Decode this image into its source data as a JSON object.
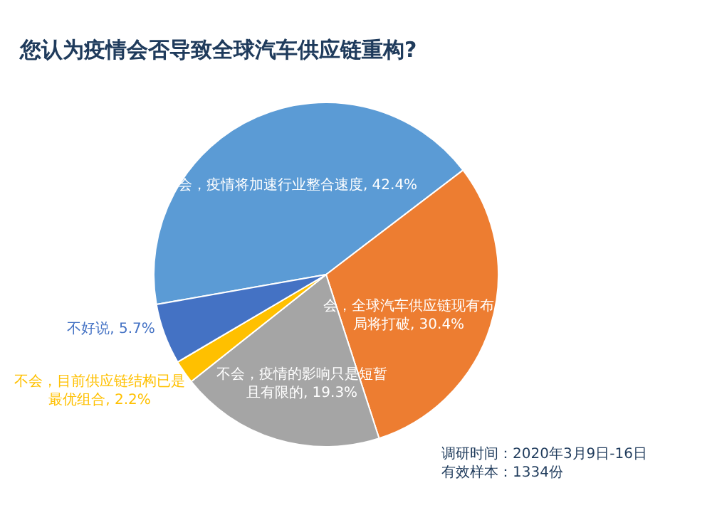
{
  "chart_data": {
    "type": "pie",
    "title": "您认为疫情会否导致全球汽车供应链重构?",
    "categories": [
      "会，疫情将加速行业整合速度",
      "会，全球汽车供应链现有布局将打破",
      "不会，疫情的影响只是短暂且有限的",
      "不会，目前供应链结构已是最优组合",
      "不好说"
    ],
    "values": [
      42.4,
      30.4,
      19.3,
      2.2,
      5.7
    ],
    "colors": [
      "#5b9bd5",
      "#ed7d31",
      "#a5a5a5",
      "#ffc000",
      "#4472c4"
    ],
    "value_labels": [
      ", 42.4%",
      ", 30.4%",
      ", 19.3%",
      ", 2.2%",
      ", 5.7%"
    ],
    "annotations": [
      "调研时间：2020年3月9日-16日",
      "有效样本：1334份"
    ]
  }
}
